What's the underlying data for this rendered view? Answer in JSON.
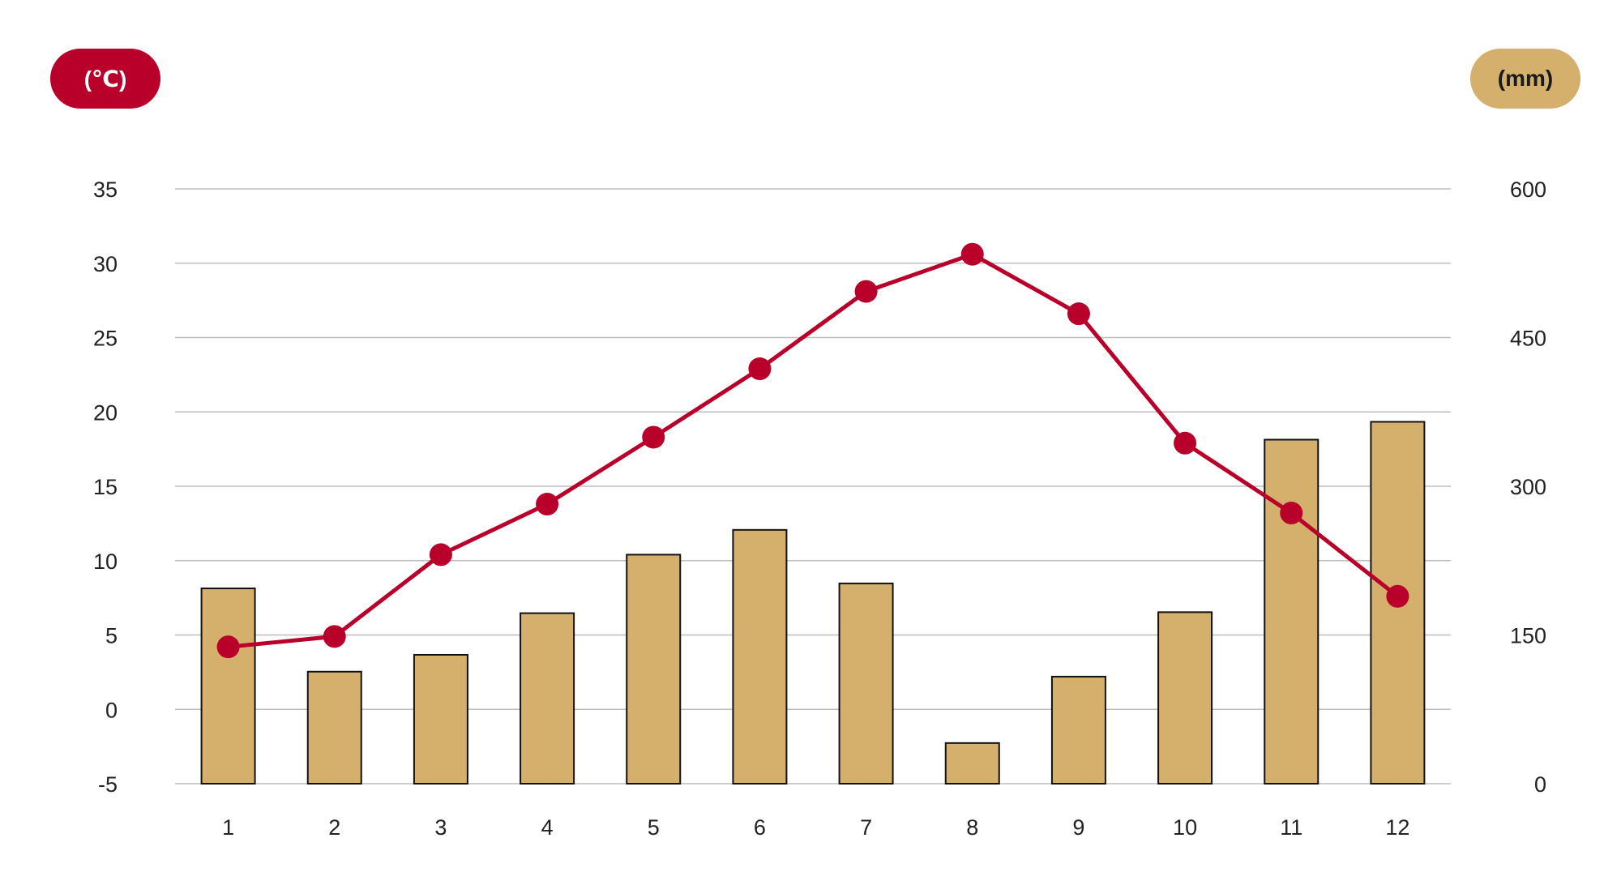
{
  "units": {
    "left": "(℃)",
    "right": "(mm)"
  },
  "colors": {
    "temperature": "#b8002a",
    "precipitation": "#d4b06c",
    "bar_outline": "#111111",
    "grid": "#bdbdbd"
  },
  "chart_data": {
    "type": "bar+line",
    "categories": [
      "1",
      "2",
      "3",
      "4",
      "5",
      "6",
      "7",
      "8",
      "9",
      "10",
      "11",
      "12"
    ],
    "series": [
      {
        "type": "bar",
        "axis": "right",
        "values": [
          197,
          113,
          130,
          172,
          231,
          256,
          202,
          41,
          108,
          173,
          347,
          365
        ]
      },
      {
        "type": "line",
        "axis": "left",
        "values": [
          4.2,
          4.9,
          10.4,
          13.8,
          18.3,
          22.9,
          28.1,
          30.6,
          26.6,
          17.9,
          13.2,
          7.6
        ]
      }
    ],
    "y_left": {
      "ylim": [
        -5,
        35
      ],
      "ticks": [
        "35",
        "30",
        "25",
        "20",
        "15",
        "10",
        "5",
        "0",
        "-5"
      ]
    },
    "y_right": {
      "ylim": [
        0,
        600
      ],
      "ticks": [
        "600",
        "450",
        "300",
        "150",
        "0"
      ]
    },
    "grid": true
  }
}
